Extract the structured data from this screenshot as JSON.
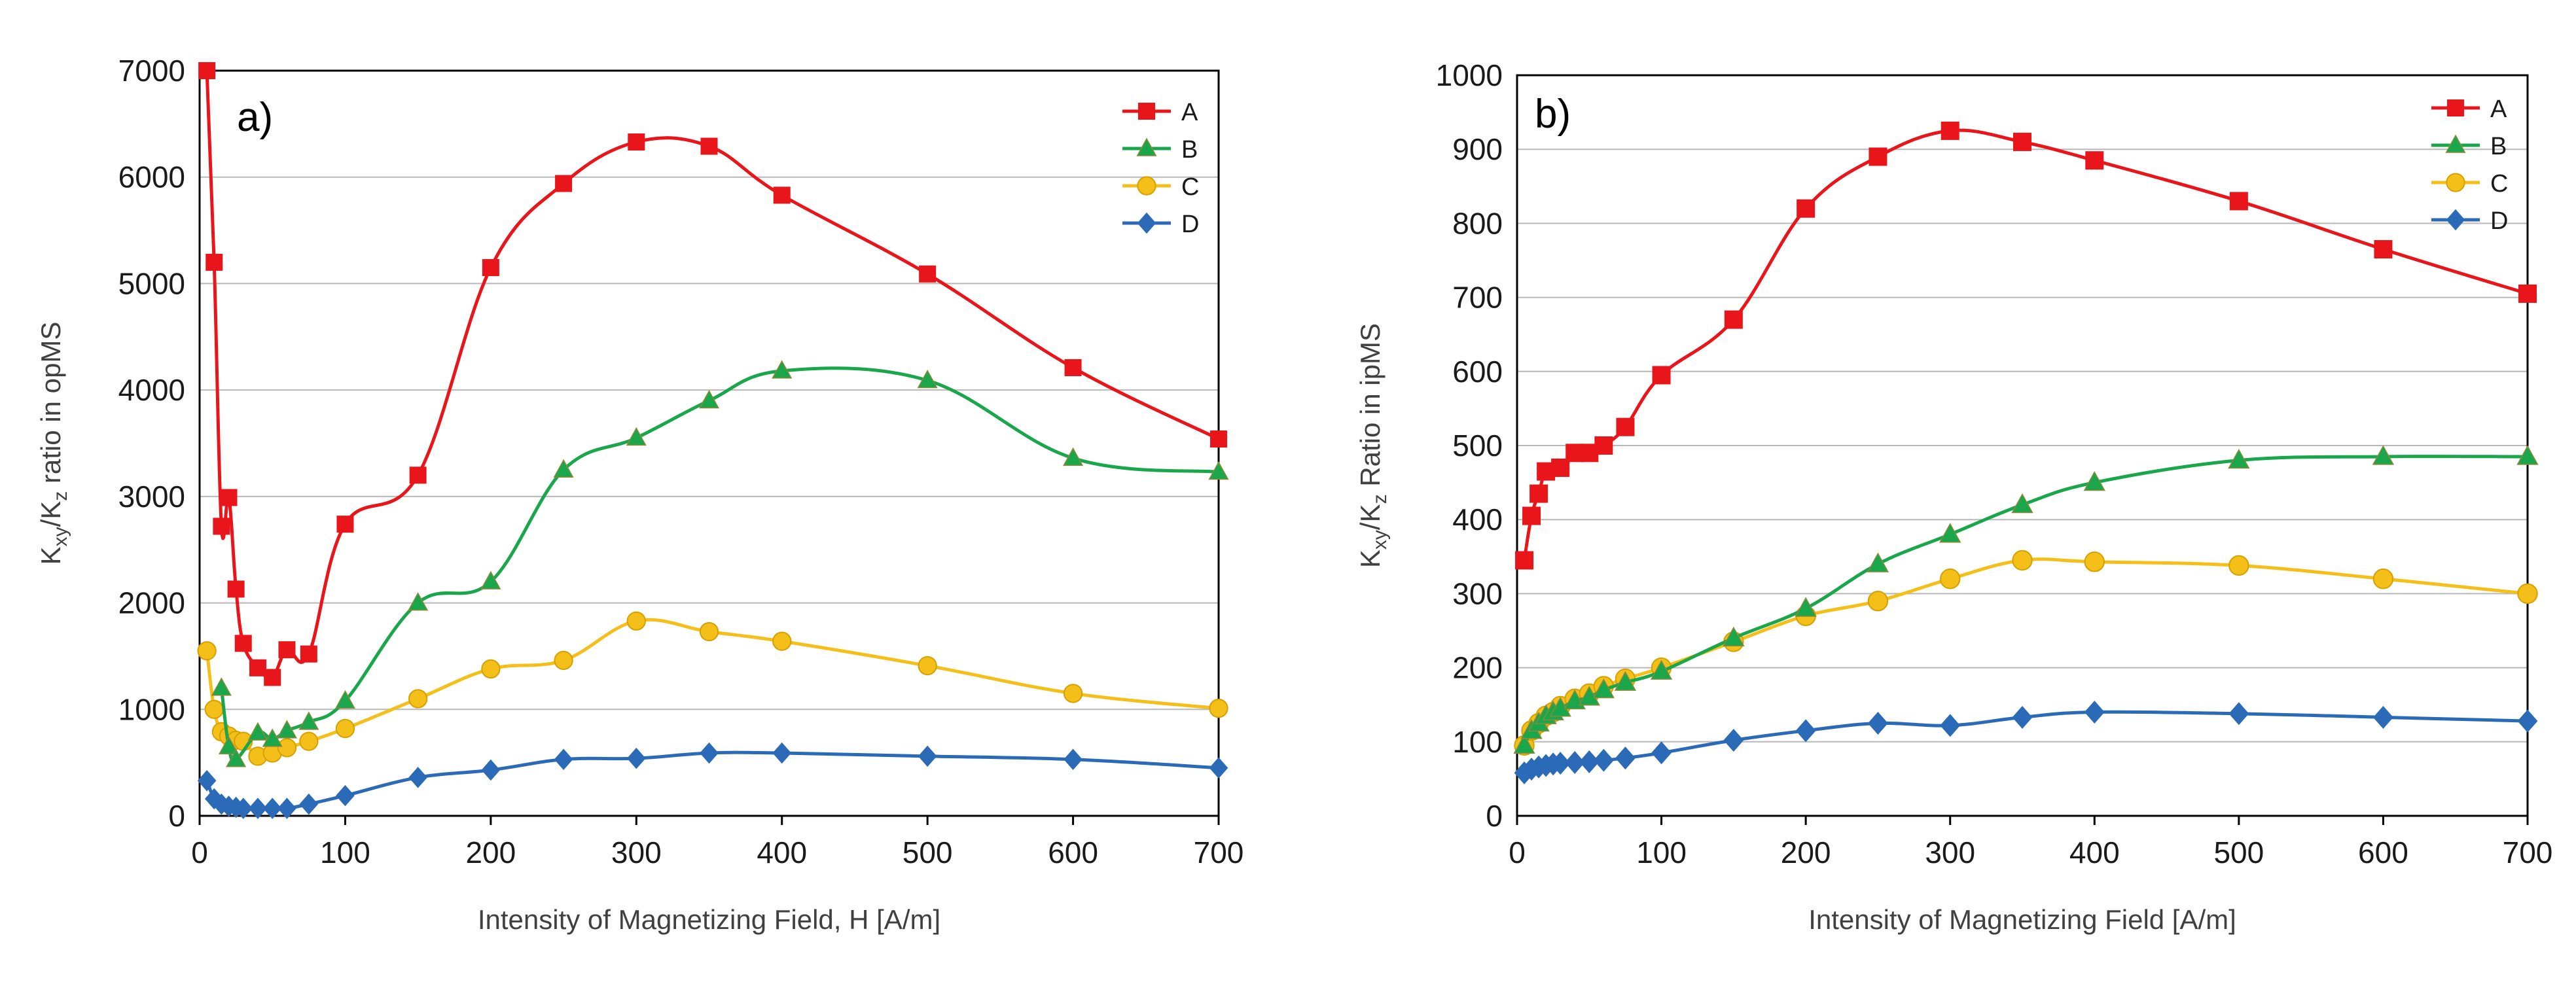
{
  "chart_data": [
    {
      "type": "line",
      "panel_label": "a)",
      "xlabel": "Intensity of Magnetizing Field, H   [A/m]",
      "ylabel_main": "K",
      "ylabel_sub1": "xy",
      "ylabel_mid": "/K",
      "ylabel_sub2": "z",
      "ylabel_tail": " ratio in opMS",
      "xlim": [
        0,
        700
      ],
      "ylim": [
        0,
        7000
      ],
      "xticks": [
        0,
        100,
        200,
        300,
        400,
        500,
        600,
        700
      ],
      "yticks": [
        0,
        1000,
        2000,
        3000,
        4000,
        5000,
        6000,
        7000
      ],
      "grid": true,
      "legend_position": "top-right",
      "series": [
        {
          "name": "A",
          "color": "#e8161b",
          "marker": "square",
          "x": [
            5,
            10,
            15,
            20,
            25,
            30,
            40,
            50,
            60,
            75,
            100,
            150,
            200,
            250,
            300,
            350,
            400,
            500,
            600,
            700
          ],
          "y": [
            7000,
            5200,
            2720,
            2990,
            2130,
            1620,
            1390,
            1300,
            1560,
            1520,
            2740,
            3200,
            5150,
            5940,
            6330,
            6290,
            5830,
            5090,
            4210,
            3540
          ]
        },
        {
          "name": "B",
          "color": "#1aa64a",
          "marker": "triangle",
          "x": [
            15,
            20,
            25,
            40,
            50,
            60,
            75,
            100,
            150,
            200,
            250,
            300,
            350,
            400,
            500,
            600,
            700
          ],
          "y": [
            1200,
            650,
            530,
            780,
            720,
            800,
            880,
            1080,
            2000,
            2200,
            3250,
            3550,
            3900,
            4180,
            4090,
            3360,
            3230
          ]
        },
        {
          "name": "C",
          "color": "#f5bf1a",
          "marker": "circle",
          "x": [
            5,
            10,
            15,
            20,
            25,
            30,
            40,
            50,
            60,
            75,
            100,
            150,
            200,
            250,
            300,
            350,
            400,
            500,
            600,
            700
          ],
          "y": [
            1550,
            1000,
            790,
            750,
            710,
            700,
            560,
            590,
            640,
            700,
            820,
            1100,
            1380,
            1460,
            1830,
            1730,
            1640,
            1410,
            1150,
            1010
          ]
        },
        {
          "name": "D",
          "color": "#2a6ab7",
          "marker": "diamond",
          "x": [
            5,
            10,
            15,
            20,
            25,
            30,
            40,
            50,
            60,
            75,
            100,
            150,
            200,
            250,
            300,
            350,
            400,
            500,
            600,
            700
          ],
          "y": [
            330,
            160,
            110,
            90,
            80,
            70,
            70,
            70,
            70,
            110,
            190,
            360,
            430,
            530,
            540,
            590,
            590,
            560,
            530,
            450
          ]
        }
      ]
    },
    {
      "type": "line",
      "panel_label": "b)",
      "xlabel": "Intensity of Magnetizing Field  [A/m]",
      "ylabel_main": "K",
      "ylabel_sub1": "xy",
      "ylabel_mid": "/K",
      "ylabel_sub2": "z",
      "ylabel_tail": " Ratio in ipMS",
      "xlim": [
        0,
        700
      ],
      "ylim": [
        0,
        1000
      ],
      "xticks": [
        0,
        100,
        200,
        300,
        400,
        500,
        600,
        700
      ],
      "yticks": [
        0,
        100,
        200,
        300,
        400,
        500,
        600,
        700,
        800,
        900,
        1000
      ],
      "grid": true,
      "legend_position": "top-right",
      "series": [
        {
          "name": "A",
          "color": "#e8161b",
          "marker": "square",
          "x": [
            5,
            10,
            15,
            20,
            30,
            40,
            50,
            60,
            75,
            100,
            150,
            200,
            250,
            300,
            350,
            400,
            500,
            600,
            700
          ],
          "y": [
            345,
            405,
            435,
            465,
            470,
            490,
            490,
            500,
            525,
            595,
            670,
            820,
            890,
            925,
            910,
            885,
            830,
            765,
            705
          ]
        },
        {
          "name": "B",
          "color": "#1aa64a",
          "marker": "triangle",
          "x": [
            5,
            10,
            15,
            20,
            25,
            30,
            40,
            50,
            60,
            75,
            100,
            150,
            200,
            250,
            300,
            350,
            400,
            500,
            600,
            700
          ],
          "y": [
            95,
            115,
            125,
            135,
            140,
            145,
            155,
            160,
            170,
            180,
            195,
            240,
            280,
            340,
            380,
            420,
            450,
            480,
            485,
            485
          ]
        },
        {
          "name": "C",
          "color": "#f5bf1a",
          "marker": "circle",
          "x": [
            5,
            10,
            15,
            20,
            25,
            30,
            40,
            50,
            60,
            75,
            100,
            150,
            200,
            250,
            300,
            350,
            400,
            500,
            600,
            700
          ],
          "y": [
            95,
            115,
            125,
            135,
            140,
            148,
            158,
            165,
            175,
            185,
            200,
            235,
            270,
            290,
            320,
            345,
            343,
            338,
            320,
            300
          ]
        },
        {
          "name": "D",
          "color": "#2a6ab7",
          "marker": "diamond",
          "x": [
            5,
            10,
            15,
            20,
            25,
            30,
            40,
            50,
            60,
            75,
            100,
            150,
            200,
            250,
            300,
            350,
            400,
            500,
            600,
            700
          ],
          "y": [
            58,
            63,
            66,
            68,
            70,
            71,
            72,
            73,
            75,
            78,
            85,
            102,
            115,
            125,
            122,
            133,
            140,
            138,
            133,
            128
          ]
        }
      ]
    }
  ]
}
